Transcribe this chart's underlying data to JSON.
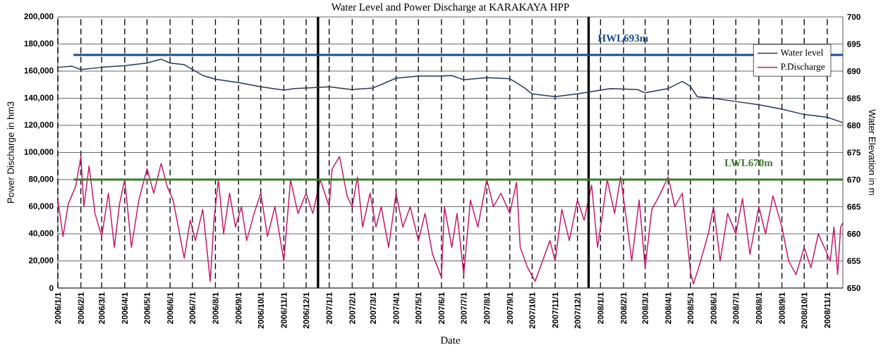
{
  "chart_data": {
    "type": "line",
    "title": "Water Level and Power Discharge at KARAKAYA HPP",
    "xlabel": "Date",
    "ylabel": "Power Discharge in hm3",
    "y2label": "Water Elevation in m",
    "xlim": [
      "2006-01-01",
      "2008-11-22"
    ],
    "xticks": [
      {
        "value": "2006-01-01",
        "label": "2006/1/1"
      },
      {
        "value": "2006-02-01",
        "label": "2006/2/1"
      },
      {
        "value": "2006-03-01",
        "label": "2006/3/1"
      },
      {
        "value": "2006-04-01",
        "label": "2006/4/1"
      },
      {
        "value": "2006-05-01",
        "label": "2006/5/1"
      },
      {
        "value": "2006-06-01",
        "label": "2006/6/1"
      },
      {
        "value": "2006-07-01",
        "label": "2006/7/1"
      },
      {
        "value": "2006-08-01",
        "label": "2006/8/1"
      },
      {
        "value": "2006-09-01",
        "label": "2006/9/1"
      },
      {
        "value": "2006-10-01",
        "label": "2006/10/1"
      },
      {
        "value": "2006-11-01",
        "label": "2006/11/1"
      },
      {
        "value": "2006-12-01",
        "label": "2006/12/1"
      },
      {
        "value": "2007-01-01",
        "label": "2007/1/1"
      },
      {
        "value": "2007-02-01",
        "label": "2007/2/1"
      },
      {
        "value": "2007-03-01",
        "label": "2007/3/1"
      },
      {
        "value": "2007-04-01",
        "label": "2007/4/1"
      },
      {
        "value": "2007-05-01",
        "label": "2007/5/1"
      },
      {
        "value": "2007-06-01",
        "label": "2007/6/1"
      },
      {
        "value": "2007-07-01",
        "label": "2007/7/1"
      },
      {
        "value": "2007-08-01",
        "label": "2007/8/1"
      },
      {
        "value": "2007-09-01",
        "label": "2007/9/1"
      },
      {
        "value": "2007-10-01",
        "label": "2007/10/1"
      },
      {
        "value": "2007-11-01",
        "label": "2007/11/1"
      },
      {
        "value": "2007-12-01",
        "label": "2007/12/1"
      },
      {
        "value": "2008-01-01",
        "label": "2008/1/1"
      },
      {
        "value": "2008-02-01",
        "label": "2008/2/1"
      },
      {
        "value": "2008-03-01",
        "label": "2008/3/1"
      },
      {
        "value": "2008-04-01",
        "label": "2008/4/1"
      },
      {
        "value": "2008-05-01",
        "label": "2008/5/1"
      },
      {
        "value": "2008-06-01",
        "label": "2008/6/1"
      },
      {
        "value": "2008-07-01",
        "label": "2008/7/1"
      },
      {
        "value": "2008-08-01",
        "label": "2008/8/1"
      },
      {
        "value": "2008-09-01",
        "label": "2008/9/1"
      },
      {
        "value": "2008-10-01",
        "label": "2008/10/1"
      },
      {
        "value": "2008-11-01",
        "label": "2008/11/1"
      }
    ],
    "ylim": [
      0,
      200000
    ],
    "yticks": [
      0,
      {
        "value": 20000,
        "label": "20,000"
      },
      {
        "value": 40000,
        "label": "40,000"
      },
      {
        "value": 60000,
        "label": "60,000"
      },
      {
        "value": 80000,
        "label": "80,000"
      },
      {
        "value": 100000,
        "label": "100,000"
      },
      {
        "value": 120000,
        "label": "120,000"
      },
      {
        "value": 140000,
        "label": "140,000"
      },
      {
        "value": 160000,
        "label": "160,000"
      },
      {
        "value": 180000,
        "label": "180,000"
      },
      {
        "value": 200000,
        "label": "200,000"
      }
    ],
    "y2lim": [
      650,
      700
    ],
    "y2ticks": [
      650,
      655,
      660,
      665,
      670,
      675,
      680,
      685,
      690,
      695,
      700
    ],
    "grid": true,
    "legend": "top right",
    "ref_lines": [
      {
        "axis": "y2",
        "value": 693,
        "label": "HWL693m",
        "color": "#1a4d8f"
      },
      {
        "axis": "y2",
        "value": 670,
        "label": "LWL670m",
        "color": "#3a7d2c"
      },
      {
        "axis": "x",
        "value": "2006-12-17",
        "color": "#000000"
      },
      {
        "axis": "x",
        "value": "2007-12-16",
        "color": "#000000"
      }
    ],
    "series": [
      {
        "name": "Water level",
        "color": "#1f3a5f",
        "axis": "y2",
        "x": [
          "2006-01-01",
          "2006-01-20",
          "2006-02-01",
          "2006-03-01",
          "2006-04-01",
          "2006-05-01",
          "2006-05-20",
          "2006-06-01",
          "2006-06-20",
          "2006-07-15",
          "2006-08-01",
          "2006-09-01",
          "2006-10-01",
          "2006-11-01",
          "2006-11-15",
          "2006-12-01",
          "2007-01-01",
          "2007-02-01",
          "2007-03-01",
          "2007-03-15",
          "2007-04-01",
          "2007-05-01",
          "2007-06-01",
          "2007-06-15",
          "2007-07-01",
          "2007-08-01",
          "2007-09-01",
          "2007-09-20",
          "2007-10-01",
          "2007-11-01",
          "2007-12-01",
          "2008-01-01",
          "2008-01-15",
          "2008-02-20",
          "2008-03-01",
          "2008-04-01",
          "2008-04-20",
          "2008-05-01",
          "2008-05-10",
          "2008-06-01",
          "2008-07-01",
          "2008-08-01",
          "2008-09-01",
          "2008-10-01",
          "2008-11-01",
          "2008-11-22"
        ],
        "values": [
          690.7,
          690.9,
          690.3,
          690.7,
          691.0,
          691.5,
          692.2,
          691.5,
          691.2,
          689.2,
          688.5,
          687.9,
          687.1,
          686.5,
          686.8,
          686.9,
          687.1,
          686.6,
          686.9,
          687.7,
          688.7,
          689.1,
          689.1,
          689.2,
          688.4,
          688.8,
          688.6,
          687.0,
          685.8,
          685.3,
          685.8,
          686.5,
          686.8,
          686.6,
          686.0,
          686.8,
          688.1,
          687.2,
          685.3,
          685.0,
          684.4,
          683.8,
          683.0,
          682.0,
          681.5,
          680.5
        ]
      },
      {
        "name": "P.Discharge",
        "color": "#c8186e",
        "x": [
          "2006-01-01",
          "2006-01-08",
          "2006-01-15",
          "2006-01-25",
          "2006-02-01",
          "2006-02-05",
          "2006-02-12",
          "2006-02-20",
          "2006-03-01",
          "2006-03-10",
          "2006-03-18",
          "2006-03-25",
          "2006-04-01",
          "2006-04-10",
          "2006-04-20",
          "2006-05-01",
          "2006-05-10",
          "2006-05-20",
          "2006-05-28",
          "2006-06-05",
          "2006-06-12",
          "2006-06-20",
          "2006-06-28",
          "2006-07-05",
          "2006-07-15",
          "2006-07-25",
          "2006-07-30",
          "2006-08-05",
          "2006-08-12",
          "2006-08-20",
          "2006-08-28",
          "2006-09-05",
          "2006-09-12",
          "2006-09-22",
          "2006-10-01",
          "2006-10-10",
          "2006-10-20",
          "2006-11-01",
          "2006-11-10",
          "2006-11-20",
          "2006-12-01",
          "2006-12-10",
          "2006-12-20",
          "2007-01-01",
          "2007-01-05",
          "2007-01-15",
          "2007-01-25",
          "2007-02-01",
          "2007-02-08",
          "2007-02-15",
          "2007-02-25",
          "2007-03-05",
          "2007-03-12",
          "2007-03-22",
          "2007-04-01",
          "2007-04-10",
          "2007-04-20",
          "2007-05-01",
          "2007-05-10",
          "2007-05-20",
          "2007-06-01",
          "2007-06-05",
          "2007-06-15",
          "2007-06-22",
          "2007-07-01",
          "2007-07-10",
          "2007-07-20",
          "2007-08-01",
          "2007-08-10",
          "2007-08-20",
          "2007-09-01",
          "2007-09-10",
          "2007-09-15",
          "2007-09-25",
          "2007-10-05",
          "2007-10-15",
          "2007-10-25",
          "2007-11-01",
          "2007-11-10",
          "2007-11-20",
          "2007-12-01",
          "2007-12-10",
          "2007-12-20",
          "2007-12-28",
          "2008-01-05",
          "2008-01-10",
          "2008-01-20",
          "2008-01-28",
          "2008-02-05",
          "2008-02-12",
          "2008-02-22",
          "2008-03-01",
          "2008-03-10",
          "2008-03-20",
          "2008-04-01",
          "2008-04-10",
          "2008-04-20",
          "2008-05-01",
          "2008-05-05",
          "2008-05-12",
          "2008-05-25",
          "2008-06-01",
          "2008-06-10",
          "2008-06-20",
          "2008-07-01",
          "2008-07-10",
          "2008-07-20",
          "2008-08-01",
          "2008-08-10",
          "2008-08-20",
          "2008-09-01",
          "2008-09-10",
          "2008-09-20",
          "2008-10-01",
          "2008-10-10",
          "2008-10-20",
          "2008-11-05",
          "2008-11-10",
          "2008-11-15",
          "2008-11-19",
          "2008-11-22"
        ],
        "values": [
          65000,
          38000,
          62000,
          75000,
          97000,
          60000,
          90000,
          55000,
          38000,
          70000,
          30000,
          62000,
          80000,
          30000,
          65000,
          88000,
          70000,
          92000,
          75000,
          65000,
          45000,
          22000,
          50000,
          35000,
          58000,
          5000,
          50000,
          80000,
          40000,
          70000,
          45000,
          60000,
          35000,
          55000,
          70000,
          38000,
          60000,
          20000,
          80000,
          55000,
          70000,
          55000,
          80000,
          60000,
          88000,
          97000,
          68000,
          60000,
          82000,
          45000,
          70000,
          45000,
          60000,
          30000,
          70000,
          45000,
          60000,
          35000,
          55000,
          25000,
          8000,
          60000,
          30000,
          55000,
          10000,
          65000,
          45000,
          80000,
          60000,
          70000,
          55000,
          78000,
          30000,
          15000,
          5000,
          20000,
          35000,
          20000,
          58000,
          35000,
          65000,
          50000,
          76000,
          30000,
          60000,
          80000,
          55000,
          82000,
          50000,
          20000,
          65000,
          15000,
          58000,
          68000,
          82000,
          60000,
          70000,
          12000,
          3000,
          15000,
          40000,
          60000,
          20000,
          55000,
          40000,
          66000,
          25000,
          60000,
          40000,
          68000,
          45000,
          20000,
          10000,
          30000,
          15000,
          40000,
          20000,
          45000,
          10000,
          45000,
          48000
        ]
      }
    ]
  }
}
